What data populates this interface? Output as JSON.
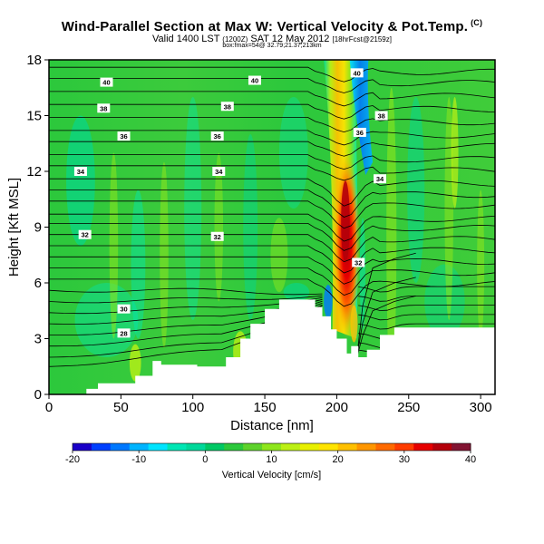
{
  "header": {
    "title": "Wind-Parallel Section at Max W: Vertical Velocity & Pot.Temp.",
    "copyright": "(C)",
    "subtitle_main": "Valid 1400 LST",
    "subtitle_z": "(1200Z)",
    "subtitle_date": "SAT 12 May 2012",
    "subtitle_fcst": "[18hrFcst@2159z]",
    "extra_line": "box:fmax=54@ 32.79;21.37;213km"
  },
  "chart_data": {
    "type": "heatmap",
    "title": "Wind-Parallel Section at Max W: Vertical Velocity & Pot.Temp.",
    "xlabel": "Distance [nm]",
    "ylabel": "Height [Kft MSL]",
    "xlim": [
      0,
      310
    ],
    "ylim": [
      0,
      18
    ],
    "xticks": [
      0,
      50,
      100,
      150,
      200,
      250,
      300
    ],
    "yticks": [
      0,
      3,
      6,
      9,
      12,
      15,
      18
    ],
    "xtick_labels": [
      "0",
      "50",
      "100",
      "150",
      "200",
      "250",
      "300"
    ],
    "ytick_labels": [
      "0",
      "3",
      "6",
      "9",
      "12",
      "15",
      "18"
    ],
    "colorbar": {
      "label": "Vertical Velocity [cm/s]",
      "min": -20,
      "max": 40,
      "tick_values": [
        -20,
        -10,
        0,
        10,
        20,
        30,
        40
      ],
      "tick_labels": [
        "-20",
        "-10",
        "0",
        "10",
        "20",
        "30",
        "40"
      ],
      "colors": [
        "#1a00c8",
        "#0040ff",
        "#0078ff",
        "#00b4ff",
        "#00e4ff",
        "#00e6b4",
        "#00d89a",
        "#00c864",
        "#2cc83c",
        "#5ed22c",
        "#8ee61c",
        "#bcf014",
        "#e8f000",
        "#ffe400",
        "#ffc000",
        "#ff9600",
        "#ff6a00",
        "#ff3c00",
        "#e60000",
        "#b4000a",
        "#821432"
      ]
    },
    "contour_field": "Potential Temperature",
    "contour_labels": [
      {
        "x": 22,
        "y": 12.0,
        "label": "34"
      },
      {
        "x": 118,
        "y": 12.0,
        "label": "34"
      },
      {
        "x": 230,
        "y": 11.6,
        "label": "34"
      },
      {
        "x": 25,
        "y": 8.6,
        "label": "32"
      },
      {
        "x": 117,
        "y": 8.5,
        "label": "32"
      },
      {
        "x": 215,
        "y": 7.1,
        "label": "32"
      },
      {
        "x": 38,
        "y": 15.4,
        "label": "38"
      },
      {
        "x": 124,
        "y": 15.5,
        "label": "38"
      },
      {
        "x": 231,
        "y": 15.0,
        "label": "38"
      },
      {
        "x": 40,
        "y": 16.8,
        "label": "40"
      },
      {
        "x": 143,
        "y": 16.9,
        "label": "40"
      },
      {
        "x": 214,
        "y": 17.3,
        "label": "40"
      },
      {
        "x": 52,
        "y": 13.9,
        "label": "36"
      },
      {
        "x": 117,
        "y": 13.9,
        "label": "36"
      },
      {
        "x": 216,
        "y": 14.1,
        "label": "36"
      },
      {
        "x": 52,
        "y": 4.6,
        "label": "30"
      },
      {
        "x": 52,
        "y": 3.3,
        "label": "28"
      }
    ],
    "terrain_height_kft": {
      "x": [
        0,
        26,
        26,
        34,
        34,
        60,
        60,
        72,
        72,
        78,
        78,
        103,
        103,
        123,
        123,
        133,
        133,
        140,
        140,
        150,
        150,
        160,
        160,
        185,
        185,
        190,
        190,
        196,
        196,
        200,
        200,
        207,
        207,
        210,
        210,
        215,
        215,
        221,
        221,
        230,
        230,
        240,
        240,
        260,
        260,
        310
      ],
      "y": [
        0,
        0,
        0.3,
        0.3,
        0.6,
        0.6,
        1.0,
        1.0,
        1.8,
        1.8,
        1.6,
        1.6,
        1.5,
        1.5,
        2.0,
        2.0,
        3.0,
        3.0,
        3.8,
        3.8,
        4.6,
        4.6,
        5.1,
        5.1,
        4.7,
        4.7,
        4.2,
        4.2,
        3.5,
        3.5,
        3.0,
        3.0,
        2.2,
        2.2,
        2.6,
        2.6,
        2.0,
        2.0,
        2.4,
        2.4,
        3.2,
        3.2,
        3.6,
        3.6,
        3.6,
        3.6
      ]
    }
  }
}
